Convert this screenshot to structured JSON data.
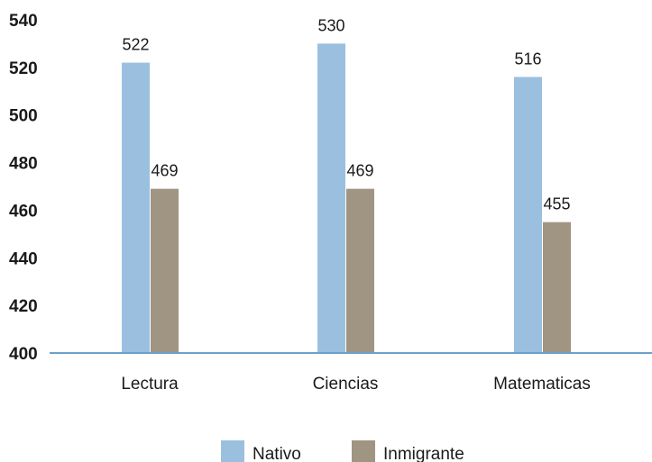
{
  "chart_data": {
    "type": "bar",
    "categories": [
      "Lectura",
      "Ciencias",
      "Matematicas"
    ],
    "series": [
      {
        "name": "Nativo",
        "values": [
          522,
          530,
          516
        ],
        "color": "#9bbfdf"
      },
      {
        "name": "Inmigrante",
        "values": [
          469,
          469,
          455
        ],
        "color": "#a09483"
      }
    ],
    "ylim": [
      400,
      540
    ],
    "yticks": [
      400,
      420,
      440,
      460,
      480,
      500,
      520,
      540
    ],
    "grid": false,
    "legend_position": "bottom",
    "axis_color": "#6ea0c8"
  }
}
